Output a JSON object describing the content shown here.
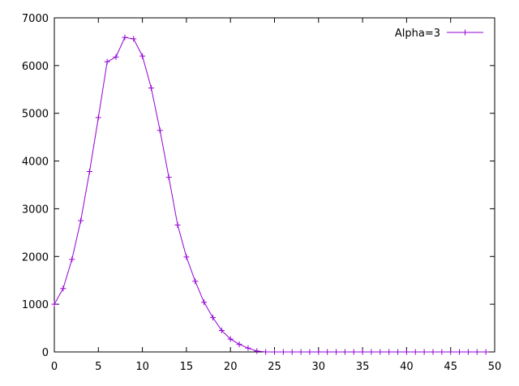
{
  "chart_data": {
    "type": "line",
    "title": "",
    "xlabel": "",
    "ylabel": "",
    "xlim": [
      0,
      50
    ],
    "ylim": [
      0,
      7000
    ],
    "xticks": [
      0,
      5,
      10,
      15,
      20,
      25,
      30,
      35,
      40,
      45,
      50
    ],
    "yticks": [
      0,
      1000,
      2000,
      3000,
      4000,
      5000,
      6000,
      7000
    ],
    "grid": false,
    "legend_position": "top-right",
    "series": [
      {
        "name": "Alpha=3",
        "color": "#9400d3",
        "marker": "plus",
        "x": [
          0,
          1,
          2,
          3,
          4,
          5,
          6,
          7,
          8,
          9,
          10,
          11,
          12,
          13,
          14,
          15,
          16,
          17,
          18,
          19,
          20,
          21,
          22,
          23,
          24,
          25,
          26,
          27,
          28,
          29,
          30,
          31,
          32,
          33,
          34,
          35,
          36,
          37,
          38,
          39,
          40,
          41,
          42,
          43,
          44,
          45,
          46,
          47,
          48,
          49
        ],
        "y": [
          1000,
          1330,
          1940,
          2750,
          3780,
          4910,
          6080,
          6180,
          6590,
          6560,
          6200,
          5530,
          4640,
          3660,
          2660,
          1990,
          1480,
          1040,
          720,
          450,
          270,
          160,
          80,
          20,
          0,
          0,
          0,
          0,
          0,
          0,
          0,
          0,
          0,
          0,
          0,
          0,
          0,
          0,
          0,
          0,
          0,
          0,
          0,
          0,
          0,
          0,
          0,
          0,
          0,
          0
        ]
      }
    ]
  }
}
